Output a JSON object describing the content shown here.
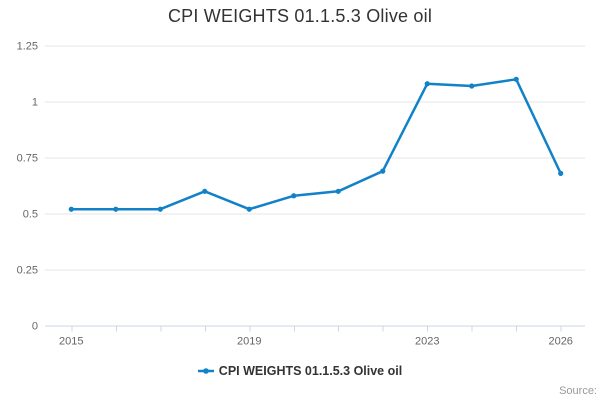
{
  "title": "CPI WEIGHTS 01.1.5.3 Olive oil",
  "legend": {
    "label": "CPI WEIGHTS 01.1.5.3 Olive oil"
  },
  "credits": "Source:",
  "colors": {
    "series": "#1182c8",
    "title_text": "#333333",
    "legend_text": "#333333",
    "axis_labels": "#666666",
    "gridline": "#e6e6e6",
    "axis_line": "#ccd6eb",
    "credits_text": "#999999"
  },
  "chart_data": {
    "type": "line",
    "title": "CPI WEIGHTS 01.1.5.3 Olive oil",
    "x": [
      2015,
      2016,
      2017,
      2018,
      2019,
      2020,
      2021,
      2022,
      2023,
      2024,
      2025,
      2026
    ],
    "series": [
      {
        "name": "CPI WEIGHTS 01.1.5.3 Olive oil",
        "values": [
          0.52,
          0.52,
          0.52,
          0.6,
          0.52,
          0.58,
          0.6,
          0.69,
          1.08,
          1.07,
          1.1,
          0.68
        ]
      }
    ],
    "xlabel": "",
    "ylabel": "",
    "ylim": [
      0,
      1.25
    ],
    "y_ticks": [
      0,
      0.25,
      0.5,
      0.75,
      1,
      1.25
    ],
    "y_tick_labels": [
      "0",
      "0.25",
      "0.5",
      "0.75",
      "1",
      "1.25"
    ],
    "x_tick_labels_shown": [
      2015,
      2019,
      2023,
      2026
    ],
    "grid": "horizontal",
    "legend_position": "bottom-center",
    "marker": "circle"
  }
}
